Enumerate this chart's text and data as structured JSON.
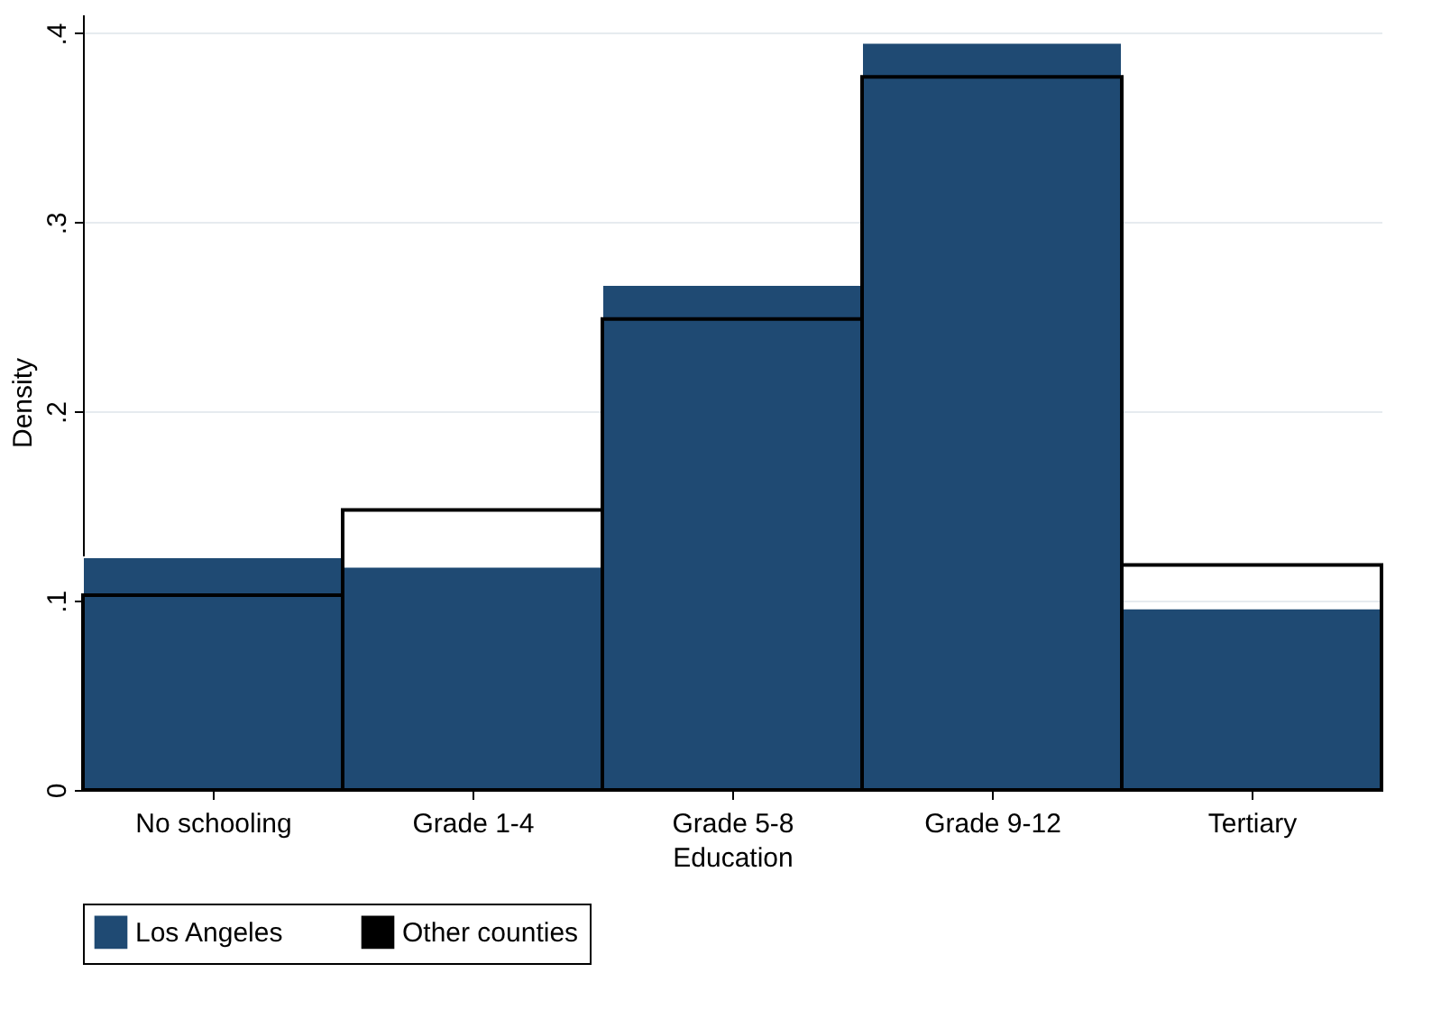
{
  "chart_data": {
    "type": "bar",
    "xlabel": "Education",
    "ylabel": "Density",
    "categories": [
      "No schooling",
      "Grade 1-4",
      "Grade 5-8",
      "Grade 9-12",
      "Tertiary"
    ],
    "series": [
      {
        "name": "Los Angeles",
        "color": "#1f4a73",
        "values": [
          0.123,
          0.118,
          0.267,
          0.395,
          0.096
        ]
      },
      {
        "name": "Other counties",
        "color": "#000000",
        "values": [
          0.103,
          0.148,
          0.249,
          0.377,
          0.119
        ]
      }
    ],
    "ylim": [
      0,
      0.41
    ],
    "yticks": [
      0,
      {
        "value": 0.1,
        "label": ".1"
      },
      {
        "value": 0.2,
        "label": ".2"
      },
      {
        "value": 0.3,
        "label": ".3"
      },
      {
        "value": 0.4,
        "label": ".4"
      }
    ],
    "grid": "y",
    "legend": "bottom"
  }
}
